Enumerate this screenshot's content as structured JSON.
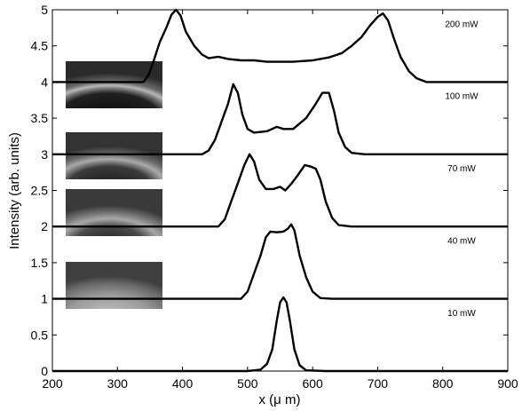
{
  "chart_data": {
    "type": "line",
    "title": "",
    "xlabel": "x (μ m)",
    "ylabel": "Intensity (arb. units)",
    "xlim": [
      200,
      900
    ],
    "ylim": [
      0,
      5
    ],
    "x_ticks": [
      "200",
      "300",
      "400",
      "500",
      "600",
      "700",
      "800",
      "900"
    ],
    "y_ticks": [
      "0",
      "0.5",
      "1",
      "1.5",
      "2",
      "2.5",
      "3",
      "3.5",
      "4",
      "4.5",
      "5"
    ],
    "grid": false,
    "legend": "none",
    "line_color": "#000000",
    "series": [
      {
        "name": "10 mW",
        "baseline": 0,
        "points": [
          [
            200,
            0
          ],
          [
            500,
            0
          ],
          [
            520,
            0.02
          ],
          [
            530,
            0.1
          ],
          [
            538,
            0.3
          ],
          [
            545,
            0.7
          ],
          [
            550,
            0.95
          ],
          [
            555,
            1.02
          ],
          [
            560,
            0.95
          ],
          [
            565,
            0.7
          ],
          [
            572,
            0.3
          ],
          [
            580,
            0.08
          ],
          [
            590,
            0.01
          ],
          [
            620,
            0
          ],
          [
            900,
            0
          ]
        ]
      },
      {
        "name": "40 mW",
        "baseline": 1,
        "points": [
          [
            200,
            1
          ],
          [
            490,
            1
          ],
          [
            500,
            1.1
          ],
          [
            510,
            1.35
          ],
          [
            520,
            1.6
          ],
          [
            528,
            1.85
          ],
          [
            535,
            1.93
          ],
          [
            545,
            1.92
          ],
          [
            555,
            1.93
          ],
          [
            562,
            1.97
          ],
          [
            567,
            2.03
          ],
          [
            572,
            1.95
          ],
          [
            580,
            1.6
          ],
          [
            590,
            1.3
          ],
          [
            600,
            1.1
          ],
          [
            612,
            1.01
          ],
          [
            630,
            1
          ],
          [
            900,
            1
          ]
        ]
      },
      {
        "name": "70 mW",
        "baseline": 2,
        "points": [
          [
            200,
            2
          ],
          [
            455,
            2
          ],
          [
            465,
            2.1
          ],
          [
            475,
            2.35
          ],
          [
            485,
            2.6
          ],
          [
            495,
            2.85
          ],
          [
            503,
            3.0
          ],
          [
            510,
            2.9
          ],
          [
            518,
            2.65
          ],
          [
            528,
            2.52
          ],
          [
            540,
            2.52
          ],
          [
            550,
            2.55
          ],
          [
            558,
            2.5
          ],
          [
            568,
            2.6
          ],
          [
            578,
            2.72
          ],
          [
            588,
            2.85
          ],
          [
            597,
            2.83
          ],
          [
            605,
            2.8
          ],
          [
            612,
            2.65
          ],
          [
            620,
            2.35
          ],
          [
            630,
            2.12
          ],
          [
            640,
            2.02
          ],
          [
            660,
            2
          ],
          [
            900,
            2
          ]
        ]
      },
      {
        "name": "100 mW",
        "baseline": 3,
        "points": [
          [
            200,
            3
          ],
          [
            430,
            3
          ],
          [
            440,
            3.05
          ],
          [
            450,
            3.2
          ],
          [
            460,
            3.45
          ],
          [
            470,
            3.7
          ],
          [
            478,
            3.97
          ],
          [
            485,
            3.85
          ],
          [
            492,
            3.55
          ],
          [
            500,
            3.35
          ],
          [
            510,
            3.3
          ],
          [
            530,
            3.32
          ],
          [
            545,
            3.38
          ],
          [
            555,
            3.35
          ],
          [
            570,
            3.35
          ],
          [
            590,
            3.5
          ],
          [
            605,
            3.7
          ],
          [
            615,
            3.85
          ],
          [
            625,
            3.85
          ],
          [
            633,
            3.6
          ],
          [
            640,
            3.3
          ],
          [
            650,
            3.1
          ],
          [
            660,
            3.02
          ],
          [
            680,
            3
          ],
          [
            900,
            3
          ]
        ]
      },
      {
        "name": "200 mW",
        "baseline": 4,
        "points": [
          [
            200,
            4
          ],
          [
            340,
            4
          ],
          [
            348,
            4.1
          ],
          [
            356,
            4.3
          ],
          [
            365,
            4.55
          ],
          [
            375,
            4.75
          ],
          [
            383,
            4.93
          ],
          [
            390,
            5.0
          ],
          [
            397,
            4.92
          ],
          [
            405,
            4.7
          ],
          [
            418,
            4.5
          ],
          [
            430,
            4.38
          ],
          [
            440,
            4.33
          ],
          [
            455,
            4.35
          ],
          [
            470,
            4.32
          ],
          [
            490,
            4.3
          ],
          [
            510,
            4.3
          ],
          [
            530,
            4.28
          ],
          [
            550,
            4.28
          ],
          [
            570,
            4.28
          ],
          [
            600,
            4.3
          ],
          [
            625,
            4.34
          ],
          [
            645,
            4.4
          ],
          [
            660,
            4.5
          ],
          [
            675,
            4.62
          ],
          [
            688,
            4.78
          ],
          [
            700,
            4.9
          ],
          [
            708,
            4.95
          ],
          [
            716,
            4.85
          ],
          [
            725,
            4.6
          ],
          [
            735,
            4.35
          ],
          [
            748,
            4.15
          ],
          [
            760,
            4.05
          ],
          [
            775,
            4.0
          ],
          [
            900,
            4
          ]
        ]
      }
    ]
  }
}
